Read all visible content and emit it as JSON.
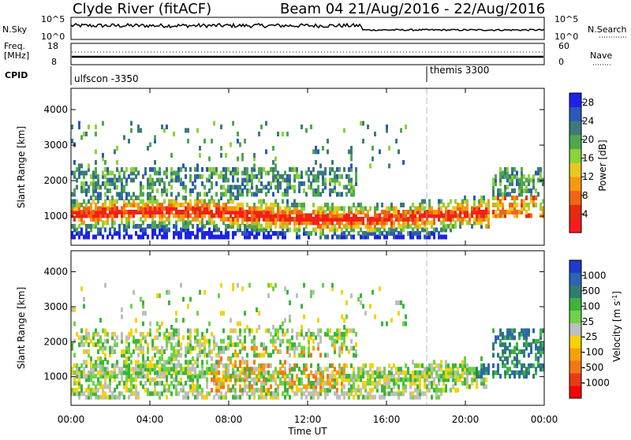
{
  "header": {
    "station_title": "Clyde River (fitACF)",
    "beam_title": "Beam 04 21/Aug/2016 - 22/Aug/2016"
  },
  "top_panels": {
    "nsky_label": "N.Sky",
    "nsky_top": "10^5",
    "nsky_bottom": "10^0",
    "nsearch_label": "N.Search",
    "nsearch_top": "10^5",
    "nsearch_bottom": "10^0",
    "freq_label_1": "Freq.",
    "freq_label_2": "[MHz]",
    "freq_top": "18",
    "freq_bottom": "8",
    "nave_label": "Nave",
    "nave_top": "60",
    "nave_bottom": "0",
    "cpid_label": "CPID",
    "cpid_left": "ulfscon -3350",
    "cpid_right": "themis 3300"
  },
  "chart_data": [
    {
      "type": "heatmap",
      "name": "Power",
      "ylabel": "Slant Range [km]",
      "xlabel": "Time UT",
      "xlim": [
        "00:00",
        "24:00"
      ],
      "ylim": [
        180,
        4600
      ],
      "x_ticks": [
        "00:00",
        "04:00",
        "08:00",
        "12:00",
        "16:00",
        "20:00",
        "00:00"
      ],
      "y_ticks": [
        1000,
        2000,
        3000,
        4000
      ],
      "colorbar": {
        "label": "Power [dB]",
        "ticks": [
          4,
          8,
          12,
          16,
          20,
          24,
          28
        ],
        "range": [
          0,
          30
        ],
        "colors": [
          "#1e22e6",
          "#2a5ab8",
          "#3d7a7a",
          "#4ea84e",
          "#8cd23a",
          "#e8c81e",
          "#f59a0a",
          "#f06414",
          "#e52a10",
          "#ff1a1a"
        ]
      }
    },
    {
      "type": "heatmap",
      "name": "Velocity",
      "ylabel": "Slant Range [km]",
      "xlabel": "Time UT",
      "xlim": [
        "00:00",
        "24:00"
      ],
      "ylim": [
        180,
        4600
      ],
      "x_ticks": [
        "00:00",
        "04:00",
        "08:00",
        "12:00",
        "16:00",
        "20:00",
        "00:00"
      ],
      "y_ticks": [
        1000,
        2000,
        3000,
        4000
      ],
      "colorbar": {
        "label": "Velocity [m s^-1]",
        "ticks": [
          "1000",
          "500",
          "100",
          "25",
          "-25",
          "-100",
          "-500",
          "-1000"
        ],
        "colors": [
          "#1e3cc8",
          "#2d64b4",
          "#2e7d6e",
          "#3cb43c",
          "#6ed246",
          "#bebebe",
          "#f5d20a",
          "#f5a00a",
          "#f07814",
          "#e63c14",
          "#ff0000"
        ]
      }
    }
  ],
  "x_axis_title": "Time UT"
}
